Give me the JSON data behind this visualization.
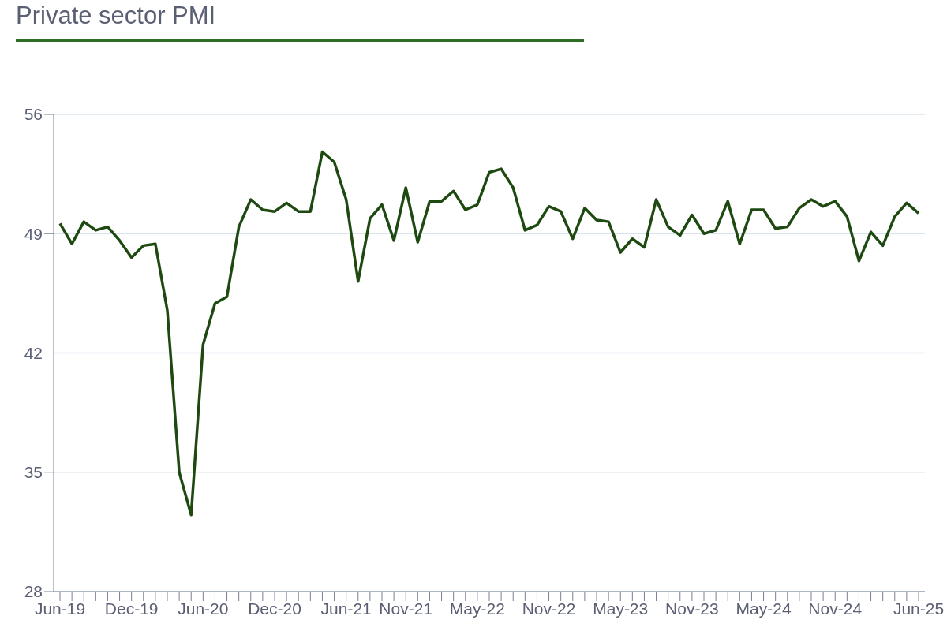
{
  "chart_data": {
    "type": "line",
    "title": "Private sector PMI",
    "categories": [
      "Jun-19",
      null,
      null,
      null,
      null,
      null,
      "Dec-19",
      null,
      null,
      null,
      null,
      null,
      "Jun-20",
      null,
      null,
      null,
      null,
      null,
      "Dec-20",
      null,
      null,
      null,
      null,
      null,
      "Jun-21",
      null,
      null,
      null,
      null,
      "Nov-21",
      null,
      null,
      null,
      null,
      null,
      "May-22",
      null,
      null,
      null,
      null,
      null,
      "Nov-22",
      null,
      null,
      null,
      null,
      null,
      "May-23",
      null,
      null,
      null,
      null,
      null,
      "Nov-23",
      null,
      null,
      null,
      null,
      null,
      "May-24",
      null,
      null,
      null,
      null,
      null,
      "Nov-24",
      null,
      null,
      null,
      null,
      null,
      null,
      "Jun-25"
    ],
    "series": [
      {
        "color": "#1e4a12",
        "values": [
          49.6,
          48.4,
          49.7,
          49.2,
          49.4,
          48.6,
          47.6,
          48.3,
          48.4,
          44.5,
          35.0,
          32.5,
          42.5,
          44.9,
          45.3,
          49.4,
          51.0,
          50.4,
          50.3,
          50.8,
          50.3,
          50.3,
          53.8,
          53.2,
          51.0,
          46.2,
          49.9,
          50.7,
          48.6,
          51.7,
          48.5,
          50.9,
          50.9,
          51.5,
          50.4,
          50.7,
          52.6,
          52.8,
          51.7,
          49.2,
          49.5,
          50.6,
          50.3,
          48.7,
          50.5,
          49.8,
          49.7,
          47.9,
          48.7,
          48.2,
          51.0,
          49.4,
          48.9,
          50.1,
          49.0,
          49.2,
          50.9,
          48.4,
          50.4,
          50.4,
          49.3,
          49.4,
          50.5,
          51.0,
          50.6,
          50.9,
          50.0,
          47.4,
          49.1,
          48.3,
          50.0,
          50.8,
          50.2
        ]
      }
    ],
    "ylim": [
      28,
      56
    ],
    "yticks": [
      28,
      35,
      42,
      49,
      56
    ],
    "grid": "y",
    "marker": "none",
    "line_style": "solid"
  }
}
